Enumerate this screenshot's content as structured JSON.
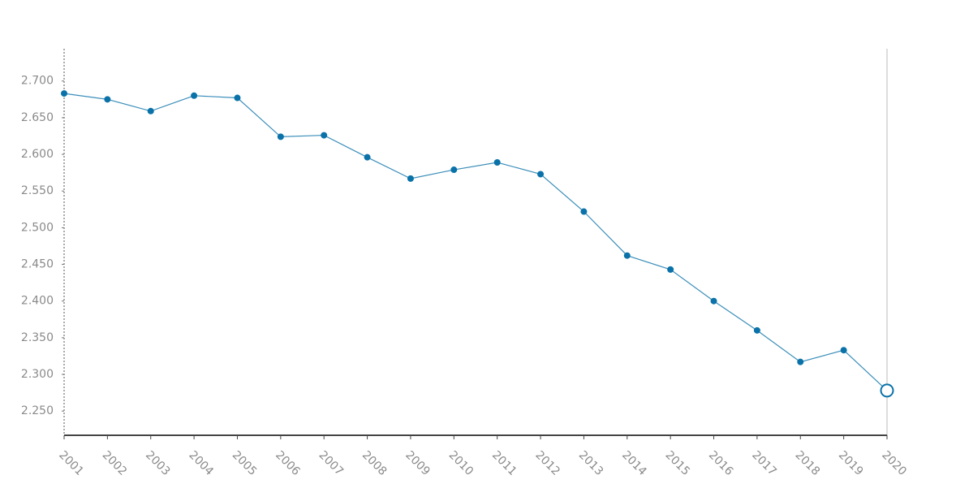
{
  "chart_data": {
    "type": "line",
    "categories": [
      "2001",
      "2002",
      "2003",
      "2004",
      "2005",
      "2006",
      "2007",
      "2008",
      "2009",
      "2010",
      "2011",
      "2012",
      "2013",
      "2014",
      "2015",
      "2016",
      "2017",
      "2018",
      "2019",
      "2020"
    ],
    "series": [
      {
        "color": "#0a72a8",
        "values": [
          2683,
          2675,
          2659,
          2680,
          2677,
          2624,
          2626,
          2596,
          2567,
          2579,
          2589,
          2573,
          2522,
          2462,
          2443,
          2400,
          2360,
          2317,
          2333,
          2278
        ]
      }
    ],
    "ylim": [
      2217,
      2744
    ],
    "yticks": [
      {
        "value": 2250,
        "label": "2.250"
      },
      {
        "value": 2300,
        "label": "2.300"
      },
      {
        "value": 2350,
        "label": "2.350"
      },
      {
        "value": 2400,
        "label": "2.400"
      },
      {
        "value": 2450,
        "label": "2.450"
      },
      {
        "value": 2500,
        "label": "2.500"
      },
      {
        "value": 2550,
        "label": "2.550"
      },
      {
        "value": 2600,
        "label": "2.600"
      },
      {
        "value": 2650,
        "label": "2.650"
      },
      {
        "value": 2700,
        "label": "2.700"
      }
    ]
  }
}
